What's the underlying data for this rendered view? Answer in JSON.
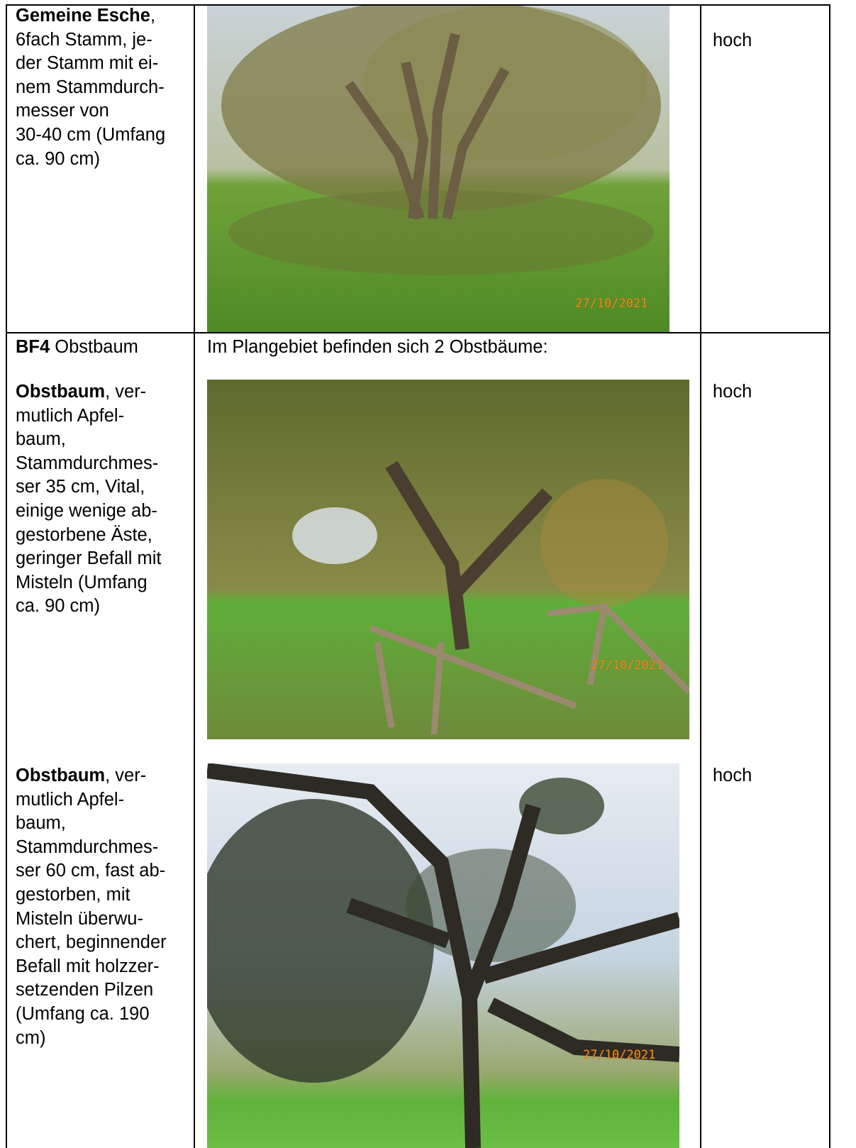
{
  "rows": [
    {
      "description": [
        {
          "bold": "Gemeine Esche",
          "text": ","
        },
        {
          "text": "6fach Stamm, je-"
        },
        {
          "text": "der Stamm mit ei-"
        },
        {
          "text": "nem Stammdurch-"
        },
        {
          "text": "messer von"
        },
        {
          "text": "30-40 cm (Umfang"
        },
        {
          "text": "ca. 90 cm)"
        }
      ],
      "photo_date": "27/10/2021",
      "rating": "hoch"
    },
    {
      "description": [
        {
          "bold": "BF4",
          "text": " Obstbaum"
        }
      ],
      "intro": "Im Plangebiet befinden sich 2 Obstbäume:",
      "trees": [
        {
          "description": [
            {
              "bold": "Obstbaum",
              "text": ", ver-"
            },
            {
              "text": "mutlich Apfel-"
            },
            {
              "text": "baum,"
            },
            {
              "text": "Stammdurchmes-"
            },
            {
              "text": "ser 35 cm, Vital,"
            },
            {
              "text": "einige wenige ab-"
            },
            {
              "text": "gestorbene Äste,"
            },
            {
              "text": "geringer Befall mit"
            },
            {
              "text": "Misteln (Umfang"
            },
            {
              "text": "ca. 90 cm)"
            }
          ],
          "photo_date": "27/10/2021",
          "rating": "hoch"
        },
        {
          "description": [
            {
              "bold": "Obstbaum",
              "text": ", ver-"
            },
            {
              "text": "mutlich Apfel-"
            },
            {
              "text": "baum,"
            },
            {
              "text": "Stammdurchmes-"
            },
            {
              "text": "ser 60 cm, fast ab-"
            },
            {
              "text": "gestorben, mit"
            },
            {
              "text": "Misteln überwu-"
            },
            {
              "text": "chert, beginnender"
            },
            {
              "text": "Befall mit holzzer-"
            },
            {
              "text": "setzenden Pilzen"
            },
            {
              "text": "(Umfang ca. 190"
            },
            {
              "text": "cm)"
            }
          ],
          "photo_date": "27/10/2021",
          "rating": "hoch"
        }
      ]
    }
  ]
}
